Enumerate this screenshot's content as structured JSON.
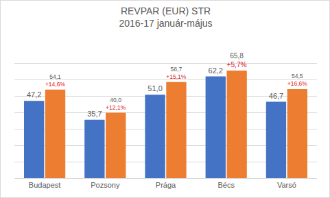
{
  "chart_data": {
    "type": "bar",
    "title": "REVPAR (EUR) STR",
    "subtitle": "2016-17 január-május",
    "categories": [
      "Budapest",
      "Pozsony",
      "Prága",
      "Bécs",
      "Varsó"
    ],
    "series": [
      {
        "color": "#4472c4",
        "values": [
          47.2,
          35.7,
          51.0,
          62.2,
          46.7
        ],
        "value_labels": [
          "47,2",
          "35,7",
          "51,0",
          "62,2",
          "46,7"
        ]
      },
      {
        "color": "#ed7d31",
        "values": [
          54.1,
          40.0,
          58.7,
          65.8,
          54.5
        ],
        "value_labels": [
          "54,1",
          "40,0",
          "58,7",
          "65,8",
          "54,5"
        ],
        "change_labels": [
          "+14,6%",
          "+12,1%",
          "+15,1%",
          "+5,7%",
          "+16,6%"
        ]
      }
    ],
    "ylim": [
      0,
      80
    ],
    "yticks": [
      0,
      10,
      20,
      30,
      40,
      50,
      60,
      70,
      80
    ],
    "grid": true,
    "data_labels": true,
    "tick_labels": "x"
  }
}
